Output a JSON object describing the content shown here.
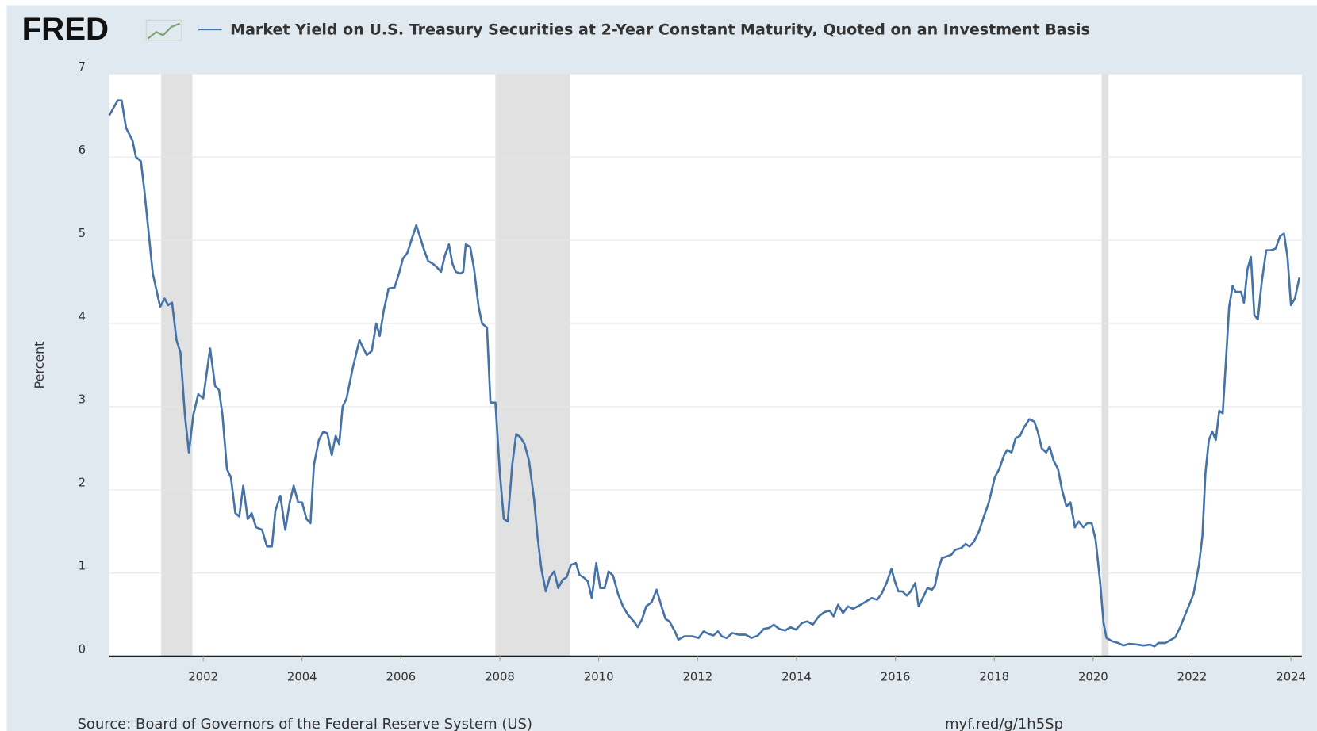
{
  "chart_data": {
    "type": "line",
    "logo": "FRED",
    "source": "Source: Board of Governors of the Federal Reserve System (US)",
    "link": "myf.red/g/1h5Sp",
    "y_label": "Percent",
    "x": [
      2000.1,
      2000.27,
      2000.35,
      2000.44,
      2000.57,
      2000.64,
      2000.74,
      2000.81,
      2000.98,
      2001.13,
      2001.22,
      2001.29,
      2001.37,
      2001.46,
      2001.54,
      2001.63,
      2001.71,
      2001.8,
      2001.9,
      2002.0,
      2002.14,
      2002.24,
      2002.32,
      2002.39,
      2002.48,
      2002.56,
      2002.65,
      2002.73,
      2002.81,
      2002.9,
      2002.98,
      2003.07,
      2003.19,
      2003.29,
      2003.39,
      2003.46,
      2003.56,
      2003.66,
      2003.75,
      2003.83,
      2003.92,
      2004.0,
      2004.09,
      2004.17,
      2004.24,
      2004.34,
      2004.43,
      2004.51,
      2004.6,
      2004.68,
      2004.75,
      2004.82,
      2004.9,
      2005.02,
      2005.16,
      2005.24,
      2005.31,
      2005.41,
      2005.5,
      2005.57,
      2005.65,
      2005.75,
      2005.87,
      2005.96,
      2006.04,
      2006.13,
      2006.21,
      2006.31,
      2006.38,
      2006.47,
      2006.55,
      2006.64,
      2006.72,
      2006.81,
      2006.89,
      2006.97,
      2007.04,
      2007.11,
      2007.2,
      2007.26,
      2007.31,
      2007.4,
      2007.48,
      2007.57,
      2007.64,
      2007.74,
      2007.81,
      2007.91,
      2008.0,
      2008.08,
      2008.16,
      2008.25,
      2008.33,
      2008.42,
      2008.5,
      2008.59,
      2008.69,
      2008.76,
      2008.84,
      2008.93,
      2009.01,
      2009.1,
      2009.18,
      2009.27,
      2009.35,
      2009.44,
      2009.54,
      2009.61,
      2009.69,
      2009.78,
      2009.86,
      2009.95,
      2010.03,
      2010.12,
      2010.2,
      2010.29,
      2010.39,
      2010.49,
      2010.59,
      2010.71,
      2010.79,
      2010.88,
      2010.96,
      2011.07,
      2011.17,
      2011.27,
      2011.35,
      2011.43,
      2011.54,
      2011.61,
      2011.73,
      2011.9,
      2012.02,
      2012.12,
      2012.22,
      2012.32,
      2012.41,
      2012.49,
      2012.59,
      2012.7,
      2012.83,
      2012.97,
      2013.09,
      2013.22,
      2013.34,
      2013.44,
      2013.54,
      2013.65,
      2013.77,
      2013.88,
      2013.99,
      2014.11,
      2014.22,
      2014.33,
      2014.45,
      2014.56,
      2014.67,
      2014.75,
      2014.84,
      2014.94,
      2015.04,
      2015.14,
      2015.24,
      2015.38,
      2015.52,
      2015.63,
      2015.72,
      2015.82,
      2015.92,
      2015.99,
      2016.06,
      2016.14,
      2016.23,
      2016.31,
      2016.4,
      2016.47,
      2016.57,
      2016.65,
      2016.74,
      2016.8,
      2016.87,
      2016.94,
      2017.04,
      2017.13,
      2017.21,
      2017.33,
      2017.42,
      2017.5,
      2017.59,
      2017.69,
      2017.79,
      2017.89,
      2018.01,
      2018.1,
      2018.2,
      2018.26,
      2018.35,
      2018.43,
      2018.52,
      2018.6,
      2018.71,
      2018.81,
      2018.88,
      2018.96,
      2019.05,
      2019.12,
      2019.2,
      2019.29,
      2019.37,
      2019.46,
      2019.54,
      2019.63,
      2019.71,
      2019.8,
      2019.88,
      2019.97,
      2020.05,
      2020.14,
      2020.21,
      2020.27,
      2020.39,
      2020.51,
      2020.61,
      2020.73,
      2020.9,
      2021.02,
      2021.15,
      2021.24,
      2021.32,
      2021.46,
      2021.58,
      2021.66,
      2021.76,
      2021.86,
      2021.93,
      2022.03,
      2022.14,
      2022.21,
      2022.27,
      2022.34,
      2022.41,
      2022.48,
      2022.55,
      2022.62,
      2022.68,
      2022.75,
      2022.82,
      2022.88,
      2022.99,
      2023.05,
      2023.12,
      2023.19,
      2023.26,
      2023.33,
      2023.41,
      2023.5,
      2023.6,
      2023.69,
      2023.78,
      2023.86,
      2023.93,
      2024.0,
      2024.08,
      2024.17
    ],
    "series": [
      {
        "name": "Market Yield on U.S. Treasury Securities at 2-Year Constant Maturity, Quoted on an Investment Basis",
        "color": "#4572a7",
        "values": [
          6.5,
          6.68,
          6.68,
          6.35,
          6.2,
          6.0,
          5.95,
          5.6,
          4.6,
          4.2,
          4.3,
          4.22,
          4.25,
          3.8,
          3.65,
          2.9,
          2.45,
          2.9,
          3.15,
          3.1,
          3.7,
          3.25,
          3.2,
          2.9,
          2.25,
          2.15,
          1.72,
          1.68,
          2.05,
          1.65,
          1.72,
          1.55,
          1.52,
          1.32,
          1.32,
          1.75,
          1.93,
          1.52,
          1.85,
          2.05,
          1.85,
          1.85,
          1.65,
          1.6,
          2.3,
          2.6,
          2.7,
          2.68,
          2.42,
          2.65,
          2.55,
          3.0,
          3.1,
          3.45,
          3.8,
          3.7,
          3.62,
          3.67,
          4.0,
          3.85,
          4.15,
          4.42,
          4.43,
          4.6,
          4.78,
          4.85,
          5.0,
          5.18,
          5.05,
          4.88,
          4.75,
          4.72,
          4.68,
          4.62,
          4.82,
          4.95,
          4.72,
          4.62,
          4.6,
          4.62,
          4.95,
          4.92,
          4.65,
          4.2,
          4.0,
          3.95,
          3.05,
          3.05,
          2.2,
          1.65,
          1.62,
          2.3,
          2.67,
          2.63,
          2.55,
          2.35,
          1.9,
          1.45,
          1.05,
          0.78,
          0.95,
          1.02,
          0.82,
          0.92,
          0.95,
          1.1,
          1.12,
          0.98,
          0.95,
          0.9,
          0.7,
          1.12,
          0.82,
          0.82,
          1.02,
          0.97,
          0.75,
          0.6,
          0.5,
          0.42,
          0.35,
          0.45,
          0.6,
          0.65,
          0.8,
          0.6,
          0.45,
          0.42,
          0.3,
          0.2,
          0.24,
          0.24,
          0.22,
          0.3,
          0.27,
          0.25,
          0.3,
          0.24,
          0.22,
          0.28,
          0.26,
          0.26,
          0.22,
          0.25,
          0.33,
          0.34,
          0.38,
          0.33,
          0.31,
          0.35,
          0.32,
          0.4,
          0.42,
          0.38,
          0.48,
          0.53,
          0.55,
          0.48,
          0.62,
          0.52,
          0.6,
          0.57,
          0.6,
          0.65,
          0.7,
          0.68,
          0.75,
          0.88,
          1.05,
          0.9,
          0.78,
          0.78,
          0.73,
          0.78,
          0.88,
          0.6,
          0.72,
          0.82,
          0.8,
          0.85,
          1.05,
          1.18,
          1.2,
          1.22,
          1.28,
          1.3,
          1.35,
          1.32,
          1.38,
          1.5,
          1.68,
          1.85,
          2.15,
          2.25,
          2.42,
          2.48,
          2.45,
          2.62,
          2.65,
          2.75,
          2.85,
          2.82,
          2.7,
          2.5,
          2.45,
          2.52,
          2.35,
          2.25,
          2.0,
          1.8,
          1.85,
          1.55,
          1.62,
          1.55,
          1.6,
          1.6,
          1.4,
          0.9,
          0.4,
          0.22,
          0.18,
          0.16,
          0.13,
          0.15,
          0.14,
          0.13,
          0.14,
          0.12,
          0.16,
          0.16,
          0.2,
          0.23,
          0.35,
          0.5,
          0.6,
          0.75,
          1.1,
          1.45,
          2.2,
          2.6,
          2.7,
          2.6,
          2.95,
          2.92,
          3.5,
          4.2,
          4.45,
          4.38,
          4.38,
          4.25,
          4.65,
          4.8,
          4.1,
          4.05,
          4.5,
          4.88,
          4.88,
          4.9,
          5.05,
          5.08,
          4.8,
          4.22,
          4.3,
          4.55
        ]
      }
    ],
    "shaded_periods": [
      {
        "start": 2001.15,
        "end": 2001.78
      },
      {
        "start": 2007.91,
        "end": 2009.42
      },
      {
        "start": 2020.17,
        "end": 2020.31
      }
    ],
    "shade_color": "#e1e1e1",
    "xlim": [
      2000.1,
      2024.22
    ],
    "ylim": [
      0,
      7
    ],
    "xticks": [
      2002,
      2004,
      2006,
      2008,
      2010,
      2012,
      2014,
      2016,
      2018,
      2020,
      2022,
      2024
    ],
    "yticks": [
      0,
      1,
      2,
      3,
      4,
      5,
      6,
      7
    ],
    "grid": true
  }
}
